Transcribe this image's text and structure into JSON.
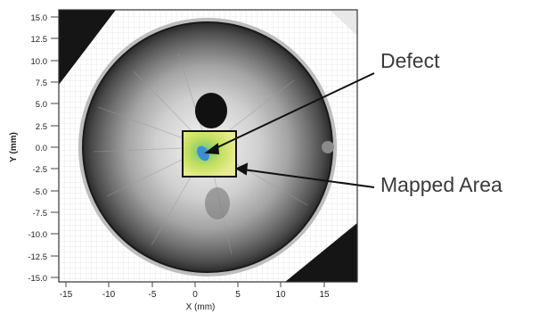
{
  "axes": {
    "x_label": "X (mm)",
    "y_label": "Y (mm)",
    "x_ticks": [
      "-15",
      "-10",
      "-5",
      "0",
      "5",
      "10",
      "15"
    ],
    "y_ticks": [
      "15.0",
      "12.5",
      "10.0",
      "7.5",
      "5.0",
      "2.5",
      "0.0",
      "-2.5",
      "-5.0",
      "-7.5",
      "-10.0",
      "-12.5",
      "-15.0"
    ]
  },
  "annotations": {
    "defect": "Defect",
    "mapped_area": "Mapped Area"
  }
}
